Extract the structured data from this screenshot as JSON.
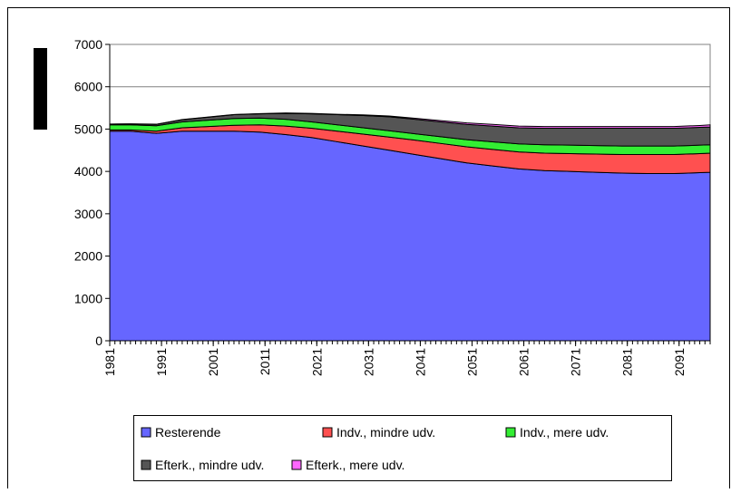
{
  "chart_data": {
    "type": "stacked_area",
    "x": [
      1981,
      1985,
      1990,
      1995,
      2000,
      2005,
      2010,
      2015,
      2020,
      2025,
      2030,
      2035,
      2040,
      2045,
      2050,
      2055,
      2060,
      2065,
      2070,
      2075,
      2080,
      2085,
      2090,
      2095,
      2097
    ],
    "series": [
      {
        "name": "Resterende",
        "color": "#6666ff",
        "values": [
          4950,
          4950,
          4900,
          4950,
          4950,
          4950,
          4930,
          4870,
          4800,
          4700,
          4600,
          4500,
          4400,
          4300,
          4200,
          4130,
          4060,
          4020,
          4000,
          3980,
          3960,
          3950,
          3950,
          3970,
          3980
        ]
      },
      {
        "name": "Indv., mindre udv.",
        "color": "#ff5050",
        "values": [
          30,
          30,
          50,
          80,
          110,
          140,
          170,
          200,
          220,
          250,
          280,
          310,
          340,
          360,
          380,
          390,
          400,
          410,
          420,
          430,
          440,
          450,
          450,
          450,
          450
        ]
      },
      {
        "name": "Indv., mere udv.",
        "color": "#33ee33",
        "values": [
          120,
          120,
          130,
          140,
          150,
          160,
          160,
          160,
          150,
          150,
          150,
          150,
          150,
          160,
          170,
          180,
          190,
          200,
          200,
          200,
          200,
          200,
          200,
          200,
          200
        ]
      },
      {
        "name": "Efterk., mindre udv.",
        "color": "#555555",
        "values": [
          15,
          20,
          30,
          50,
          70,
          90,
          100,
          140,
          190,
          240,
          290,
          330,
          340,
          350,
          360,
          370,
          380,
          390,
          400,
          410,
          420,
          420,
          420,
          420,
          420
        ]
      },
      {
        "name": "Efterk., mere udv.",
        "color": "#ff66ff",
        "values": [
          5,
          5,
          5,
          5,
          5,
          5,
          5,
          10,
          10,
          10,
          15,
          20,
          25,
          30,
          35,
          40,
          40,
          40,
          40,
          40,
          40,
          40,
          40,
          45,
          50
        ]
      }
    ],
    "xlim": [
      1981,
      2097
    ],
    "xticks": [
      1981,
      1991,
      2001,
      2011,
      2021,
      2031,
      2041,
      2051,
      2061,
      2071,
      2081,
      2091
    ],
    "ylim": [
      0,
      7000
    ],
    "yticks": [
      0,
      1000,
      2000,
      3000,
      4000,
      5000,
      6000,
      7000
    ],
    "grid": true
  }
}
